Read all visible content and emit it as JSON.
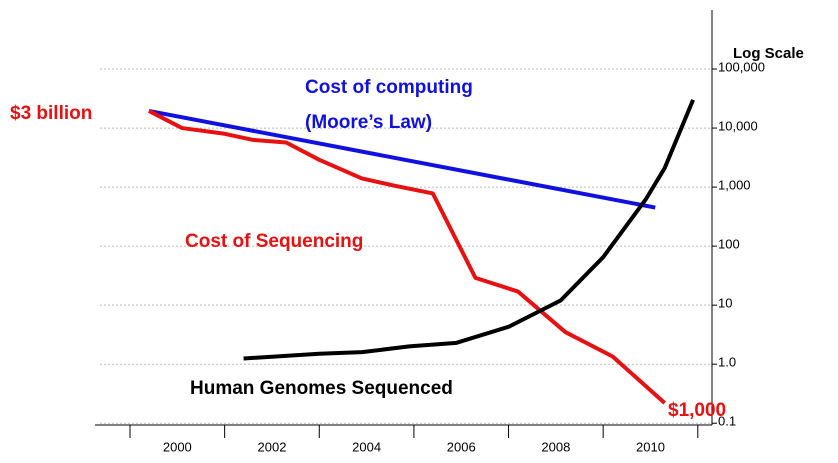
{
  "chart_data": {
    "type": "line",
    "ylabel": "Log Scale",
    "log_y": true,
    "grid": true,
    "xlim": [
      1998.26,
      2011.3
    ],
    "ylim": [
      0.0933,
      1000000
    ],
    "xticks": [
      2000,
      2002,
      2004,
      2006,
      2008,
      2010
    ],
    "xminorticks": [
      1999,
      2001,
      2003,
      2005,
      2007,
      2009,
      2011
    ],
    "yticks": [
      0.1,
      {
        "value": 1,
        "label": "1.0"
      },
      10,
      100,
      {
        "value": 1000,
        "label": "1,000"
      },
      {
        "value": 10000,
        "label": "10,000"
      },
      {
        "value": 100000,
        "label": "100,000"
      }
    ],
    "series": [
      {
        "name": "Cost of computing",
        "subname": "(Moore’s Law)",
        "color": "#1010e0",
        "x": [
          1999.4,
          2010.1
        ],
        "values": [
          19500,
          450
        ]
      },
      {
        "name": "Cost of Sequencing",
        "color": "#e81010",
        "x": [
          1999.4,
          2000.1,
          2001,
          2001.6,
          2002.3,
          2003,
          2003.9,
          2004.6,
          2005.4,
          2006.3,
          2007.2,
          2008.2,
          2009.2,
          2010.3
        ],
        "values": [
          19500,
          10000,
          8000,
          6300,
          5700,
          2900,
          1400,
          1050,
          780,
          29,
          17,
          3.5,
          1.35,
          0.22
        ]
      },
      {
        "name": "Human Genomes Sequenced",
        "color": "#000000",
        "x": [
          2001.4,
          2003,
          2003.9,
          2004.9,
          2005.9,
          2007,
          2008.1,
          2009,
          2009.9,
          2010.3,
          2010.9
        ],
        "values": [
          1.25,
          1.5,
          1.6,
          2.0,
          2.3,
          4.3,
          12,
          65,
          620,
          2100,
          30000
        ]
      }
    ],
    "annotations": [
      {
        "text": "$3 billion",
        "color": "#e81010"
      },
      {
        "text": "$1,000",
        "color": "#e81010"
      }
    ]
  }
}
